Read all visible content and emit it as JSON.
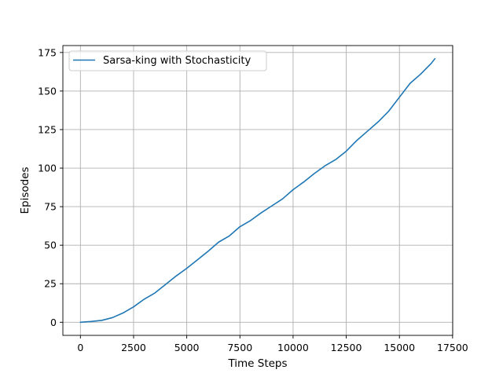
{
  "chart_data": {
    "type": "line",
    "title": "",
    "xlabel": "Time Steps",
    "ylabel": "Episodes",
    "xlim": [
      -825,
      17505
    ],
    "ylim": [
      -8.5,
      179.5
    ],
    "xticks": [
      0,
      2500,
      5000,
      7500,
      10000,
      12500,
      15000,
      17500
    ],
    "xtick_labels": [
      "0",
      "2500",
      "5000",
      "7500",
      "10000",
      "12500",
      "15000",
      "17500"
    ],
    "yticks": [
      0,
      25,
      50,
      75,
      100,
      125,
      150,
      175
    ],
    "ytick_labels": [
      "0",
      "25",
      "50",
      "75",
      "100",
      "125",
      "150",
      "175"
    ],
    "grid": true,
    "legend_position": "upper-left",
    "series": [
      {
        "name": "Sarsa-king with Stochasticity",
        "color": "#1f77b4",
        "x": [
          0,
          500,
          1000,
          1500,
          2000,
          2500,
          3000,
          3500,
          4000,
          4500,
          5000,
          5500,
          6000,
          6500,
          7000,
          7500,
          8000,
          8500,
          9000,
          9500,
          10000,
          10500,
          11000,
          11500,
          12000,
          12500,
          13000,
          13500,
          14000,
          14500,
          15000,
          15500,
          16000,
          16500,
          16670
        ],
        "y": [
          0,
          0.5,
          1.2,
          3,
          6,
          10,
          15,
          19,
          24.5,
          30,
          35,
          40.5,
          46,
          52,
          56,
          62,
          66,
          71,
          75.5,
          80,
          86,
          91,
          96.5,
          101.5,
          105.5,
          111,
          118,
          124,
          130,
          137,
          146,
          155,
          161,
          168,
          171
        ]
      }
    ]
  }
}
